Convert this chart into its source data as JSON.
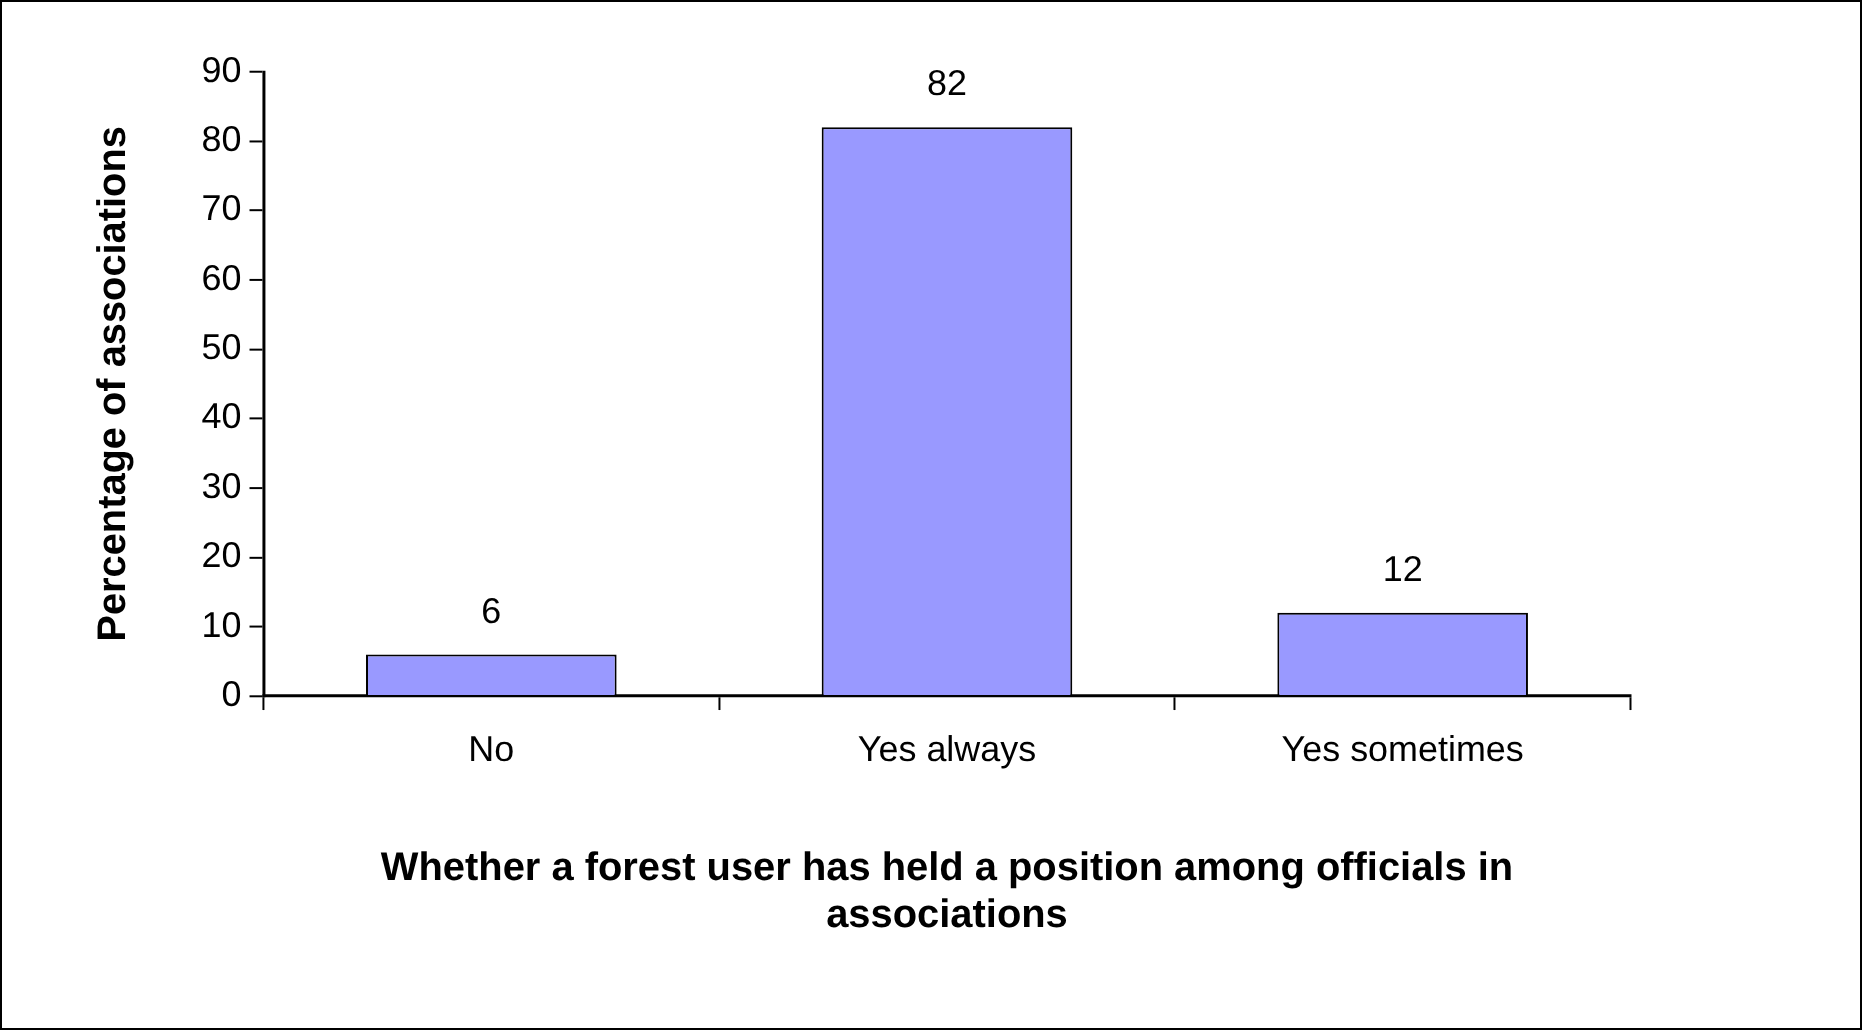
{
  "chart_data": {
    "type": "bar",
    "xlabel": "Whether a forest user has held a position among officials in associations",
    "ylabel": "Percentage of associations",
    "categories": [
      "No",
      "Yes always",
      "Yes sometimes"
    ],
    "values": [
      6,
      82,
      12
    ],
    "color": "#9999ff",
    "ylim": [
      0,
      90
    ],
    "yticks": [
      0,
      10,
      20,
      30,
      40,
      50,
      60,
      70,
      80,
      90
    ],
    "data_labels": true,
    "grid": false,
    "legend": false
  }
}
